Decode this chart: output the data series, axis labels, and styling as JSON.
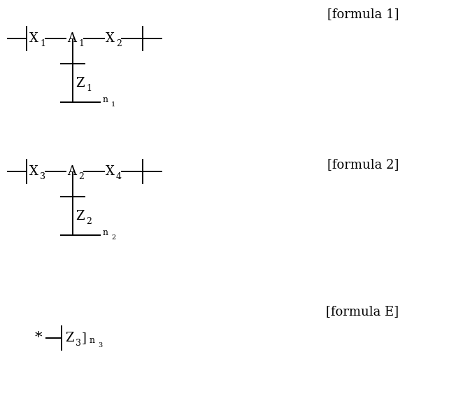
{
  "background_color": "#ffffff",
  "figsize": [
    6.52,
    5.83
  ],
  "dpi": 100,
  "lw": 1.4,
  "font_main": 13,
  "font_sub": 9,
  "font_subsub": 7,
  "formula1_label": "[formula 1]",
  "formula2_label": "[formula 2]",
  "formulaE_label": "[formula E]"
}
